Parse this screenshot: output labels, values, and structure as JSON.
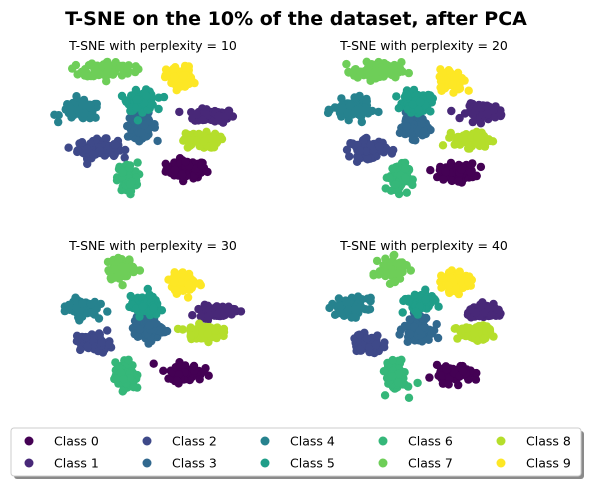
{
  "title": "T-SNE on the 10% of the dataset, after PCA",
  "colors": {
    "Class 0": "#440154",
    "Class 1": "#482878",
    "Class 2": "#3e4989",
    "Class 3": "#31688e",
    "Class 4": "#26828e",
    "Class 5": "#1f9e89",
    "Class 6": "#35b779",
    "Class 7": "#6ece58",
    "Class 8": "#b5de2b",
    "Class 9": "#fde725"
  },
  "legend": {
    "placement": "bottom-center",
    "columns": 5,
    "items": [
      "Class 0",
      "Class 1",
      "Class 2",
      "Class 3",
      "Class 4",
      "Class 5",
      "Class 6",
      "Class 7",
      "Class 8",
      "Class 9"
    ]
  },
  "chart_data": [
    {
      "type": "scatter",
      "title": "T-SNE with perplexity = 10",
      "axes_visible": false,
      "xlim": [
        -10,
        10
      ],
      "ylim": [
        -10,
        10
      ],
      "series": [
        {
          "name": "Class 0",
          "center": [
            3.0,
            -3.5
          ],
          "spread": [
            2.0,
            1.2
          ]
        },
        {
          "name": "Class 1",
          "center": [
            5.5,
            3.0
          ],
          "spread": [
            2.0,
            0.9
          ]
        },
        {
          "name": "Class 2",
          "center": [
            -5.0,
            -1.0
          ],
          "spread": [
            2.0,
            1.2
          ]
        },
        {
          "name": "Class 3",
          "center": [
            -1.0,
            1.8
          ],
          "spread": [
            1.4,
            1.6
          ]
        },
        {
          "name": "Class 4",
          "center": [
            -6.5,
            3.6
          ],
          "spread": [
            2.0,
            1.2
          ]
        },
        {
          "name": "Class 5",
          "center": [
            -1.0,
            4.8
          ],
          "spread": [
            1.4,
            1.3
          ]
        },
        {
          "name": "Class 6",
          "center": [
            -2.3,
            -4.5
          ],
          "spread": [
            1.0,
            2.0
          ]
        },
        {
          "name": "Class 7",
          "center": [
            -4.0,
            8.6
          ],
          "spread": [
            2.5,
            1.1
          ]
        },
        {
          "name": "Class 8",
          "center": [
            4.3,
            0.0
          ],
          "spread": [
            1.8,
            1.0
          ]
        },
        {
          "name": "Class 9",
          "center": [
            2.4,
            7.6
          ],
          "spread": [
            1.3,
            1.5
          ]
        }
      ]
    },
    {
      "type": "scatter",
      "title": "T-SNE with perplexity = 20",
      "axes_visible": false,
      "xlim": [
        -10,
        10
      ],
      "ylim": [
        -10,
        10
      ],
      "series": [
        {
          "name": "Class 0",
          "center": [
            3.0,
            -3.8
          ],
          "spread": [
            1.8,
            1.1
          ]
        },
        {
          "name": "Class 1",
          "center": [
            5.5,
            3.5
          ],
          "spread": [
            1.8,
            1.0
          ]
        },
        {
          "name": "Class 2",
          "center": [
            -5.0,
            -1.0
          ],
          "spread": [
            1.8,
            1.2
          ]
        },
        {
          "name": "Class 3",
          "center": [
            -1.0,
            1.8
          ],
          "spread": [
            1.3,
            1.6
          ]
        },
        {
          "name": "Class 4",
          "center": [
            -6.5,
            3.7
          ],
          "spread": [
            1.8,
            1.3
          ]
        },
        {
          "name": "Class 5",
          "center": [
            -0.6,
            4.6
          ],
          "spread": [
            1.4,
            1.3
          ]
        },
        {
          "name": "Class 6",
          "center": [
            -2.3,
            -4.5
          ],
          "spread": [
            1.0,
            1.9
          ]
        },
        {
          "name": "Class 7",
          "center": [
            -4.2,
            8.4
          ],
          "spread": [
            2.4,
            1.2
          ]
        },
        {
          "name": "Class 8",
          "center": [
            4.4,
            0.1
          ],
          "spread": [
            1.8,
            1.0
          ]
        },
        {
          "name": "Class 9",
          "center": [
            2.5,
            7.4
          ],
          "spread": [
            1.2,
            1.4
          ]
        }
      ]
    },
    {
      "type": "scatter",
      "title": "T-SNE with perplexity = 30",
      "axes_visible": false,
      "xlim": [
        -10,
        10
      ],
      "ylim": [
        -10,
        10
      ],
      "series": [
        {
          "name": "Class 0",
          "center": [
            2.8,
            -4.1
          ],
          "spread": [
            1.8,
            1.1
          ]
        },
        {
          "name": "Class 1",
          "center": [
            5.8,
            3.3
          ],
          "spread": [
            1.8,
            0.8
          ]
        },
        {
          "name": "Class 2",
          "center": [
            -5.2,
            -0.5
          ],
          "spread": [
            1.5,
            1.2
          ]
        },
        {
          "name": "Class 3",
          "center": [
            -0.5,
            1.2
          ],
          "spread": [
            1.4,
            1.6
          ]
        },
        {
          "name": "Class 4",
          "center": [
            -6.5,
            3.8
          ],
          "spread": [
            1.6,
            1.2
          ]
        },
        {
          "name": "Class 5",
          "center": [
            -0.7,
            3.9
          ],
          "spread": [
            1.4,
            1.3
          ]
        },
        {
          "name": "Class 6",
          "center": [
            -2.5,
            -4.5
          ],
          "spread": [
            1.0,
            1.9
          ]
        },
        {
          "name": "Class 7",
          "center": [
            -2.8,
            8.4
          ],
          "spread": [
            1.4,
            1.4
          ]
        },
        {
          "name": "Class 8",
          "center": [
            4.5,
            0.8
          ],
          "spread": [
            1.7,
            0.9
          ]
        },
        {
          "name": "Class 9",
          "center": [
            2.8,
            6.8
          ],
          "spread": [
            1.3,
            1.3
          ]
        }
      ]
    },
    {
      "type": "scatter",
      "title": "T-SNE with perplexity = 40",
      "axes_visible": false,
      "xlim": [
        -10,
        10
      ],
      "ylim": [
        -10,
        10
      ],
      "series": [
        {
          "name": "Class 0",
          "center": [
            2.8,
            -4.3
          ],
          "spread": [
            1.8,
            1.1
          ]
        },
        {
          "name": "Class 1",
          "center": [
            5.6,
            3.2
          ],
          "spread": [
            1.8,
            0.8
          ]
        },
        {
          "name": "Class 2",
          "center": [
            -5.1,
            -0.7
          ],
          "spread": [
            1.5,
            1.2
          ]
        },
        {
          "name": "Class 3",
          "center": [
            -0.6,
            1.3
          ],
          "spread": [
            1.3,
            1.6
          ]
        },
        {
          "name": "Class 4",
          "center": [
            -6.5,
            3.8
          ],
          "spread": [
            1.6,
            1.2
          ]
        },
        {
          "name": "Class 5",
          "center": [
            -0.4,
            4.3
          ],
          "spread": [
            1.4,
            1.3
          ]
        },
        {
          "name": "Class 6",
          "center": [
            -2.5,
            -4.6
          ],
          "spread": [
            1.0,
            1.9
          ]
        },
        {
          "name": "Class 7",
          "center": [
            -2.8,
            8.4
          ],
          "spread": [
            1.4,
            1.4
          ]
        },
        {
          "name": "Class 8",
          "center": [
            4.5,
            0.7
          ],
          "spread": [
            1.7,
            0.9
          ]
        },
        {
          "name": "Class 9",
          "center": [
            2.8,
            6.8
          ],
          "spread": [
            1.3,
            1.3
          ]
        }
      ]
    }
  ]
}
